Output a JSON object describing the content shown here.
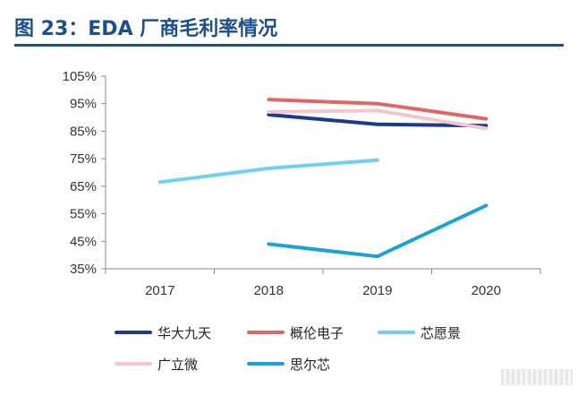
{
  "header": {
    "title": "图 23：EDA 厂商毛利率情况"
  },
  "chart_data": {
    "type": "line",
    "title": "",
    "xlabel": "",
    "ylabel": "",
    "categories": [
      "2017",
      "2018",
      "2019",
      "2020"
    ],
    "y_ticks": [
      "35%",
      "45%",
      "55%",
      "65%",
      "75%",
      "85%",
      "95%",
      "105%"
    ],
    "ylim": [
      35,
      105
    ],
    "y_unit": "%",
    "grid": false,
    "legend_position": "bottom",
    "series": [
      {
        "name": "华大九天",
        "color": "#1a3a8f",
        "values": [
          null,
          91,
          87.5,
          87
        ]
      },
      {
        "name": "概伦电子",
        "color": "#e06666",
        "values": [
          null,
          96.5,
          95,
          89.5
        ]
      },
      {
        "name": "芯愿景",
        "color": "#6fd0f5",
        "values": [
          66.5,
          71.5,
          74.5,
          null
        ]
      },
      {
        "name": "广立微",
        "color": "#f4c6cc",
        "values": [
          null,
          92,
          92.5,
          86
        ]
      },
      {
        "name": "思尔芯",
        "color": "#1aa3d6",
        "values": [
          null,
          44,
          39.5,
          58
        ]
      }
    ]
  }
}
